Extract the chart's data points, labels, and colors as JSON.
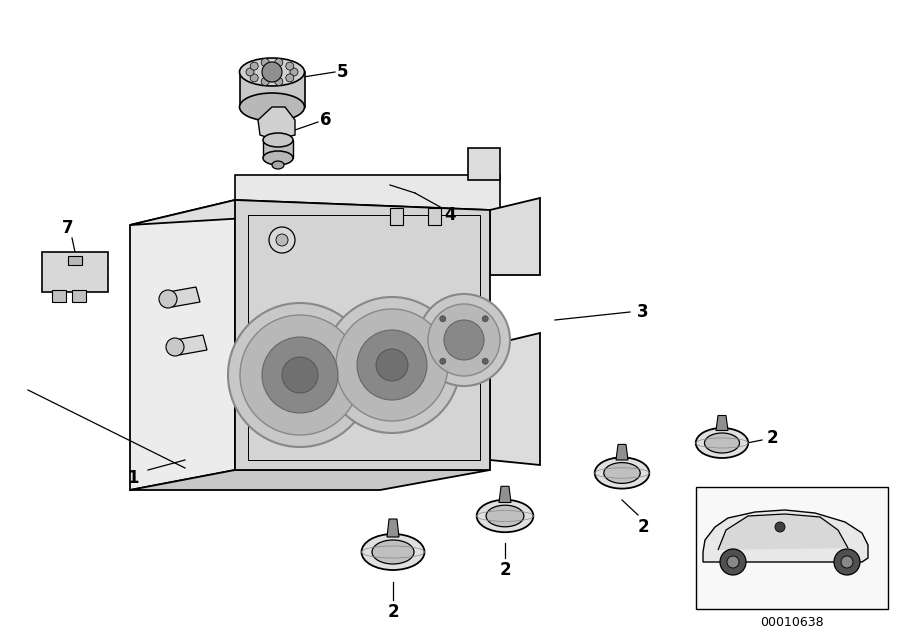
{
  "background_color": "#ffffff",
  "line_color": "#000000",
  "diagram_id": "00010638",
  "label_fontsize": 12,
  "small_fontsize": 9
}
